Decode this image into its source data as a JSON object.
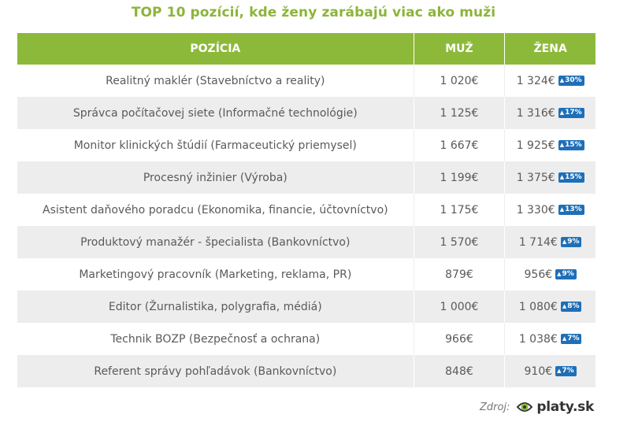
{
  "title": "TOP 10 pozícií, kde ženy zarábajú viac ako muži",
  "table": {
    "headers": [
      "POZÍCIA",
      "MUŽ",
      "ŽENA"
    ],
    "rows": [
      {
        "position": "Realitný maklér (Stavebníctvo a reality)",
        "muz": "1 020€",
        "zena": "1 324€",
        "diff": "30%"
      },
      {
        "position": "Správca počítačovej siete (Informačné technológie)",
        "muz": "1 125€",
        "zena": "1 316€",
        "diff": "17%"
      },
      {
        "position": "Monitor klinických štúdií (Farmaceutický priemysel)",
        "muz": "1 667€",
        "zena": "1 925€",
        "diff": "15%"
      },
      {
        "position": "Procesný inžinier (Výroba)",
        "muz": "1 199€",
        "zena": "1 375€",
        "diff": "15%"
      },
      {
        "position": "Asistent daňového poradcu (Ekonomika, financie, účtovníctvo)",
        "muz": "1 175€",
        "zena": "1 330€",
        "diff": "13%"
      },
      {
        "position": "Produktový manažér - špecialista (Bankovníctvo)",
        "muz": "1 570€",
        "zena": "1 714€",
        "diff": "9%"
      },
      {
        "position": "Marketingový pracovník (Marketing, reklama, PR)",
        "muz": "879€",
        "zena": "956€",
        "diff": "9%"
      },
      {
        "position": "Editor (Žurnalistika, polygrafia, médiá)",
        "muz": "1 000€",
        "zena": "1 080€",
        "diff": "8%"
      },
      {
        "position": "Technik BOZP (Bezpečnosť a ochrana)",
        "muz": "966€",
        "zena": "1 038€",
        "diff": "7%"
      },
      {
        "position": "Referent správy pohľadávok (Bankovníctvo)",
        "muz": "848€",
        "zena": "910€",
        "diff": "7%"
      }
    ]
  },
  "footer": {
    "source_label": "Zdroj:",
    "logo_text": "platy.sk",
    "logo_icon": "eye-icon"
  },
  "colors": {
    "accent": "#8db93a",
    "title": "#8cb43a",
    "badge": "#1e6fb8",
    "row_alt": "#ededed"
  }
}
